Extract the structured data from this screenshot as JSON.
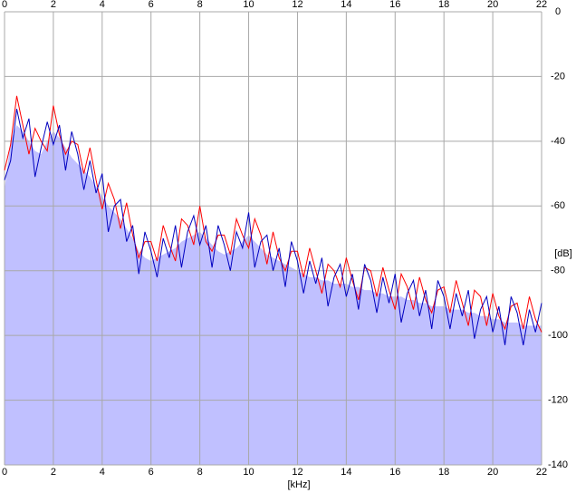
{
  "chart_data": {
    "type": "line",
    "xlabel": "[kHz]",
    "ylabel": "[dB]",
    "x": [
      0,
      0.25,
      0.5,
      0.75,
      1,
      1.25,
      1.5,
      1.75,
      2,
      2.25,
      2.5,
      2.75,
      3,
      3.25,
      3.5,
      3.75,
      4,
      4.25,
      4.5,
      4.75,
      5,
      5.25,
      5.5,
      5.75,
      6,
      6.25,
      6.5,
      6.75,
      7,
      7.25,
      7.5,
      7.75,
      8,
      8.25,
      8.5,
      8.75,
      9,
      9.25,
      9.5,
      9.75,
      10,
      10.25,
      10.5,
      10.75,
      11,
      11.25,
      11.5,
      11.75,
      12,
      12.25,
      12.5,
      12.75,
      13,
      13.25,
      13.5,
      13.75,
      14,
      14.25,
      14.5,
      14.75,
      15,
      15.25,
      15.5,
      15.75,
      16,
      16.25,
      16.5,
      16.75,
      17,
      17.25,
      17.5,
      17.75,
      18,
      18.25,
      18.5,
      18.75,
      19,
      19.25,
      19.5,
      19.75,
      20,
      20.25,
      20.5,
      20.75,
      21,
      21.25,
      21.5,
      21.75,
      22
    ],
    "area": {
      "color": "#c0c0ff",
      "values": [
        -55,
        -40,
        -35,
        -37,
        -40,
        -43,
        -44,
        -40,
        -37,
        -39,
        -42,
        -45,
        -47,
        -49,
        -51,
        -54,
        -57,
        -60,
        -62,
        -64,
        -67,
        -70,
        -74,
        -76,
        -77,
        -76,
        -75,
        -74,
        -73,
        -71,
        -70,
        -69,
        -68,
        -70,
        -72,
        -74,
        -75,
        -74,
        -73,
        -71,
        -69,
        -71,
        -73,
        -75,
        -76,
        -77,
        -78,
        -79,
        -80,
        -81,
        -82,
        -82,
        -83,
        -83,
        -84,
        -84,
        -84,
        -85,
        -85,
        -86,
        -86,
        -87,
        -87,
        -88,
        -88,
        -88,
        -89,
        -89,
        -90,
        -90,
        -91,
        -91,
        -91,
        -92,
        -92,
        -92,
        -93,
        -93,
        -94,
        -94,
        -95,
        -95,
        -96,
        -96,
        -96,
        -97,
        -97,
        -97,
        -97
      ]
    },
    "series": [
      {
        "color": "#ff0000",
        "values": [
          -49,
          -41,
          -26,
          -35,
          -44,
          -36,
          -40,
          -43,
          -29,
          -38,
          -44,
          -40,
          -41,
          -50,
          -42,
          -52,
          -61,
          -53,
          -58,
          -67,
          -59,
          -69,
          -76,
          -71,
          -71,
          -77,
          -66,
          -72,
          -77,
          -64,
          -66,
          -72,
          -60,
          -71,
          -74,
          -69,
          -69,
          -75,
          -64,
          -69,
          -73,
          -64,
          -69,
          -78,
          -68,
          -76,
          -80,
          -74,
          -74,
          -82,
          -73,
          -80,
          -87,
          -78,
          -80,
          -85,
          -76,
          -83,
          -89,
          -79,
          -80,
          -88,
          -79,
          -86,
          -92,
          -81,
          -85,
          -92,
          -82,
          -89,
          -93,
          -86,
          -85,
          -93,
          -83,
          -90,
          -97,
          -86,
          -88,
          -97,
          -87,
          -94,
          -98,
          -91,
          -90,
          -98,
          -88,
          -95,
          -99
        ]
      },
      {
        "color": "#0000c0",
        "values": [
          -52,
          -46,
          -30,
          -39,
          -33,
          -51,
          -42,
          -34,
          -41,
          -35,
          -49,
          -37,
          -44,
          -55,
          -46,
          -56,
          -50,
          -68,
          -60,
          -58,
          -71,
          -66,
          -81,
          -68,
          -74,
          -82,
          -70,
          -76,
          -66,
          -79,
          -68,
          -63,
          -72,
          -66,
          -79,
          -66,
          -72,
          -80,
          -68,
          -73,
          -62,
          -79,
          -71,
          -69,
          -80,
          -73,
          -85,
          -71,
          -77,
          -87,
          -77,
          -84,
          -76,
          -91,
          -82,
          -78,
          -88,
          -81,
          -92,
          -78,
          -83,
          -93,
          -82,
          -90,
          -81,
          -96,
          -87,
          -83,
          -94,
          -86,
          -98,
          -83,
          -88,
          -98,
          -87,
          -94,
          -86,
          -101,
          -92,
          -88,
          -99,
          -91,
          -103,
          -88,
          -93,
          -103,
          -92,
          -99,
          -90
        ]
      }
    ],
    "xlim": [
      0,
      22
    ],
    "xticks": [
      0,
      2,
      4,
      6,
      8,
      10,
      12,
      14,
      16,
      18,
      20,
      22
    ],
    "ylim": [
      -140,
      0
    ],
    "yticks": [
      0,
      -20,
      -40,
      -60,
      -80,
      -100,
      -120,
      -140
    ],
    "grid": true,
    "grid_color": "#a8a8a8"
  }
}
